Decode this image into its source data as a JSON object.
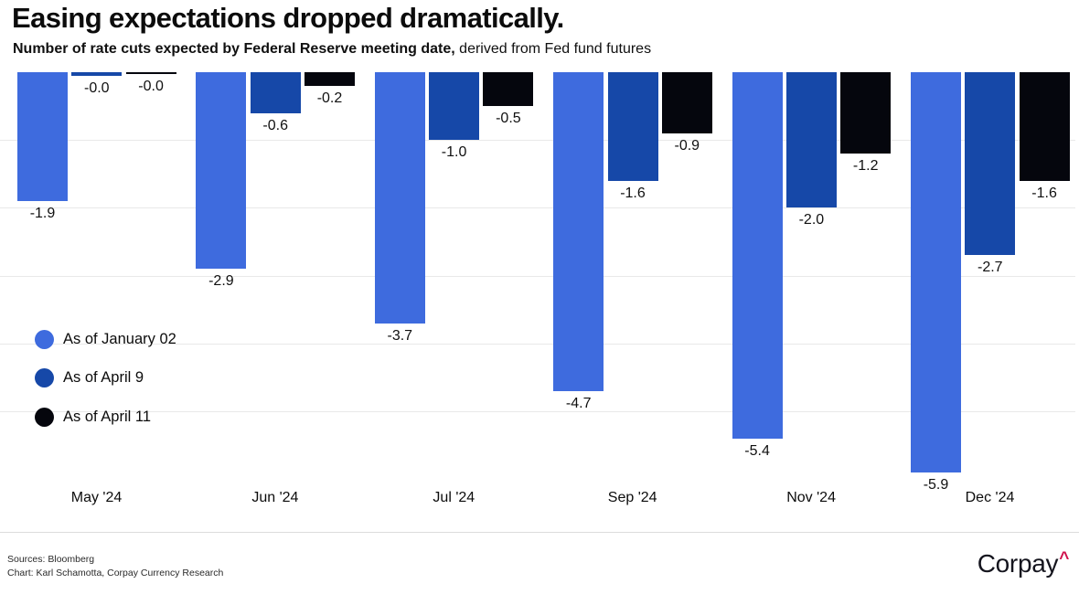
{
  "chart_data": {
    "type": "bar",
    "orientation": "vertical grouped",
    "title": "Easing expectations dropped dramatically.",
    "subtitle_parts": {
      "bold": "Number of rate cuts expected by Federal Reserve meeting date,",
      "regular": " derived from Fed fund futures"
    },
    "categories": [
      "May '24",
      "Jun '24",
      "Jul '24",
      "Sep '24",
      "Nov '24",
      "Dec '24"
    ],
    "series": [
      {
        "name": "As of January 02",
        "color": "#3E6BDE",
        "values": [
          -1.9,
          -2.9,
          -3.7,
          -4.7,
          -5.4,
          -5.9
        ],
        "labels": [
          "-1.9",
          "-2.9",
          "-3.7",
          "-4.7",
          "-5.4",
          "-5.9"
        ]
      },
      {
        "name": "As of April 9",
        "color": "#1648A8",
        "values": [
          -0.0,
          -0.6,
          -1.0,
          -1.6,
          -2.0,
          -2.7
        ],
        "labels": [
          "-0.0",
          "-0.6",
          "-1.0",
          "-1.6",
          "-2.0",
          "-2.7"
        ]
      },
      {
        "name": "As of April 11",
        "color": "#05060D",
        "values": [
          -0.0,
          -0.2,
          -0.5,
          -0.9,
          -1.2,
          -1.6
        ],
        "labels": [
          "-0.0",
          "-0.2",
          "-0.5",
          "-0.9",
          "-1.2",
          "-1.6"
        ]
      }
    ],
    "ylim": [
      -6.2,
      0
    ],
    "gridline_values": [
      -1,
      -2,
      -3,
      -4,
      -5
    ],
    "grid": "horizontal only, no axis tick labels",
    "legend_position": "middle-left",
    "value_labels": "below each bar"
  },
  "footer": {
    "line1": "Sources: Bloomberg",
    "line2": "Chart: Karl Schamotta, Corpay Currency Research",
    "logo": {
      "text": "Corpay",
      "caret": "^",
      "caret_color": "#D0104C"
    }
  }
}
